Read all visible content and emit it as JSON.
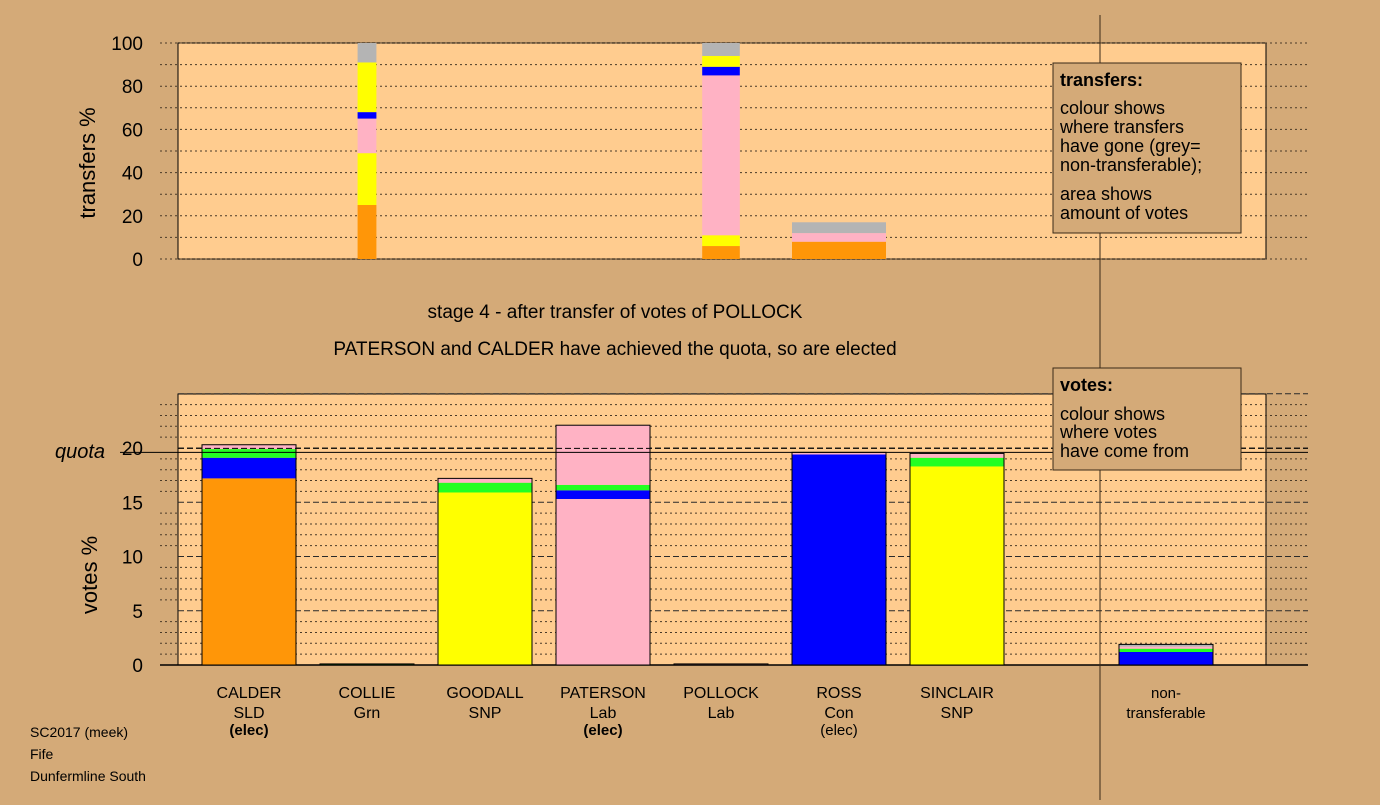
{
  "colors": {
    "background": "#d4aa78",
    "plot_bg": "#ffcc8f",
    "legend_bg": "#d4aa78",
    "SLD": "#ff9608",
    "SNP": "#ffff00",
    "Lab": "#ffb2c4",
    "Con": "#0000ff",
    "Grn": "#22ff22",
    "nontransferable": "#b4b4b4"
  },
  "stage_text": "stage 4 - after transfer of votes of POLLOCK",
  "elected_text": "PATERSON and CALDER have achieved the quota, so are elected",
  "legend_transfers": {
    "title": "transfers:",
    "line1": "colour shows",
    "line2": "where transfers",
    "line3": "have gone (grey=",
    "line4": "non-transferable);",
    "line5": "area shows",
    "line6": "amount of votes"
  },
  "legend_votes": {
    "title": "votes:",
    "line1": "colour shows",
    "line2": "where votes",
    "line3": "have come from"
  },
  "quota_label": "quota",
  "footer": {
    "line1": "SC2017 (meek)",
    "line2": "Fife",
    "line3": "Dunfermline South"
  },
  "chart_data": [
    {
      "type": "bar",
      "stacked": true,
      "ylabel": "transfers %",
      "ylim": [
        0,
        100
      ],
      "yticks": [
        0,
        20,
        40,
        60,
        80,
        100
      ],
      "grid": "dotted horizontal",
      "bars": [
        {
          "column": 1,
          "width_fraction": 0.2,
          "segments": [
            {
              "party": "SLD",
              "value": 25
            },
            {
              "party": "SNP",
              "value": 24
            },
            {
              "party": "Lab",
              "value": 16
            },
            {
              "party": "Con",
              "value": 3
            },
            {
              "party": "SNP",
              "value": 23
            },
            {
              "party": "nontransferable",
              "value": 9
            }
          ]
        },
        {
          "column": 4,
          "width_fraction": 0.4,
          "segments": [
            {
              "party": "SLD",
              "value": 6
            },
            {
              "party": "SNP",
              "value": 5
            },
            {
              "party": "Lab",
              "value": 74
            },
            {
              "party": "Con",
              "value": 4
            },
            {
              "party": "SNP",
              "value": 5
            },
            {
              "party": "nontransferable",
              "value": 6
            }
          ]
        },
        {
          "column": 5,
          "width_fraction": 1.0,
          "segments": [
            {
              "party": "SLD",
              "value": 8
            },
            {
              "party": "Lab",
              "value": 4
            },
            {
              "party": "nontransferable",
              "value": 5
            }
          ]
        }
      ]
    },
    {
      "type": "bar",
      "stacked": true,
      "ylabel": "votes %",
      "ylim": [
        0,
        25
      ],
      "yticks": [
        0,
        5,
        10,
        15,
        20
      ],
      "quota": 19.6,
      "grid": "dashed horizontal",
      "categories": [
        {
          "name": "CALDER",
          "party": "SLD",
          "status": "(elec)",
          "bold_status": true
        },
        {
          "name": "COLLIE",
          "party": "Grn",
          "status": "",
          "bold_status": false
        },
        {
          "name": "GOODALL",
          "party": "SNP",
          "status": "",
          "bold_status": false
        },
        {
          "name": "PATERSON",
          "party": "Lab",
          "status": "(elec)",
          "bold_status": true
        },
        {
          "name": "POLLOCK",
          "party": "Lab",
          "status": "",
          "bold_status": false
        },
        {
          "name": "ROSS",
          "party": "Con",
          "status": "(elec)",
          "bold_status": false
        },
        {
          "name": "SINCLAIR",
          "party": "SNP",
          "status": "",
          "bold_status": false
        }
      ],
      "nontransferable_label": [
        "non-",
        "transferable"
      ],
      "stacks": [
        [
          {
            "party": "SLD",
            "value": 17.2
          },
          {
            "party": "Con",
            "value": 1.9
          },
          {
            "party": "Grn",
            "value": 0.8
          },
          {
            "party": "Lab",
            "value": 0.4
          }
        ],
        [
          {
            "party": "Grn",
            "value": 0.1
          }
        ],
        [
          {
            "party": "SNP",
            "value": 15.9
          },
          {
            "party": "Grn",
            "value": 0.9
          },
          {
            "party": "Lab",
            "value": 0.4
          }
        ],
        [
          {
            "party": "Lab",
            "value": 15.3
          },
          {
            "party": "Con",
            "value": 0.8
          },
          {
            "party": "Grn",
            "value": 0.5
          },
          {
            "party": "Lab",
            "value": 5.5
          }
        ],
        [
          {
            "party": "Lab",
            "value": 0.1
          }
        ],
        [
          {
            "party": "Con",
            "value": 19.4
          },
          {
            "party": "Lab",
            "value": 0.2
          }
        ],
        [
          {
            "party": "SNP",
            "value": 18.3
          },
          {
            "party": "Grn",
            "value": 0.8
          },
          {
            "party": "Lab",
            "value": 0.4
          }
        ]
      ],
      "nontransferable_stack": [
        {
          "party": "Con",
          "value": 1.2
        },
        {
          "party": "Grn",
          "value": 0.3
        },
        {
          "party": "Lab",
          "value": 0.2
        },
        {
          "party": "nontransferable",
          "value": 0.2
        }
      ]
    }
  ]
}
